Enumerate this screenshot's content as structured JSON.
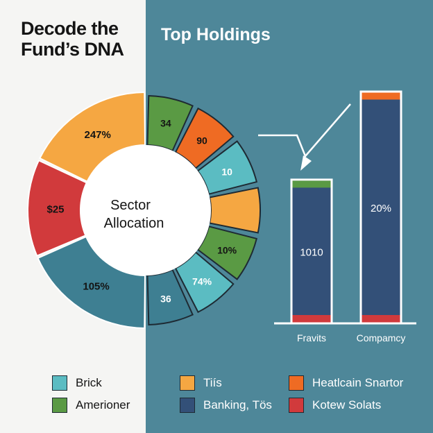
{
  "title": "Decode the Fund’s DNA",
  "subtitle": "Top Holdings",
  "colors": {
    "left_bg": "#f5f5f3",
    "right_bg": "#4e8799",
    "orange": "#f5a742",
    "red": "#d13a3c",
    "teal_dark": "#3e7f92",
    "green": "#5a9a44",
    "orange_dark": "#ef6b23",
    "teal_light": "#5bbcc2",
    "navy": "#335078"
  },
  "chart_data": [
    {
      "type": "pie",
      "variant": "donut",
      "center_label_line1": "Sector",
      "center_label_line2": "Allocation",
      "outer_slices": [
        {
          "label": "247%",
          "value": 29,
          "color": "#f5a742"
        },
        {
          "label": "$25",
          "value": 22,
          "color": "#d13a3c"
        },
        {
          "label": "105%",
          "value": 30,
          "color": "#3e7f92"
        }
      ],
      "inner_segments": [
        {
          "label": "34",
          "value": 1,
          "color": "#5a9a44",
          "icon": "money-bag-icon"
        },
        {
          "label": "90",
          "value": 1,
          "color": "#ef6b23",
          "icon": "diamond-icon"
        },
        {
          "label": "10",
          "value": 1,
          "color": "#5bbcc2",
          "icon": "divide-icon"
        },
        {
          "label": "",
          "value": 1,
          "color": "#f5a742",
          "icon": "mask-icon"
        },
        {
          "label": "10%",
          "value": 1,
          "color": "#5a9a44"
        },
        {
          "label": "74%",
          "value": 1,
          "color": "#5bbcc2"
        },
        {
          "label": "36",
          "value": 1,
          "color": "#3e7f92"
        }
      ]
    },
    {
      "type": "bar",
      "categories": [
        "Fravits",
        "Compamcy"
      ],
      "bar_labels": [
        "1010",
        "20%"
      ],
      "values": [
        62,
        100
      ],
      "ylim": [
        0,
        100
      ],
      "fill_color": "#335078",
      "cap_colors": [
        "#5a9a44",
        "#ef6b23"
      ],
      "base_color": "#d13a3c"
    }
  ],
  "legend": [
    {
      "label": "Brick",
      "color": "#5bbcc2",
      "side": "dark"
    },
    {
      "label": "Amerioner",
      "color": "#5a9a44",
      "side": "dark"
    },
    {
      "label": "Tiís",
      "color": "#f5a742",
      "side": "light"
    },
    {
      "label": "Banking, Tös",
      "color": "#335078",
      "side": "light"
    },
    {
      "label": "Heatlcain Snartor",
      "color": "#ef6b23",
      "side": "light"
    },
    {
      "label": "Kotew Solats",
      "color": "#d13a3c",
      "side": "light"
    }
  ]
}
